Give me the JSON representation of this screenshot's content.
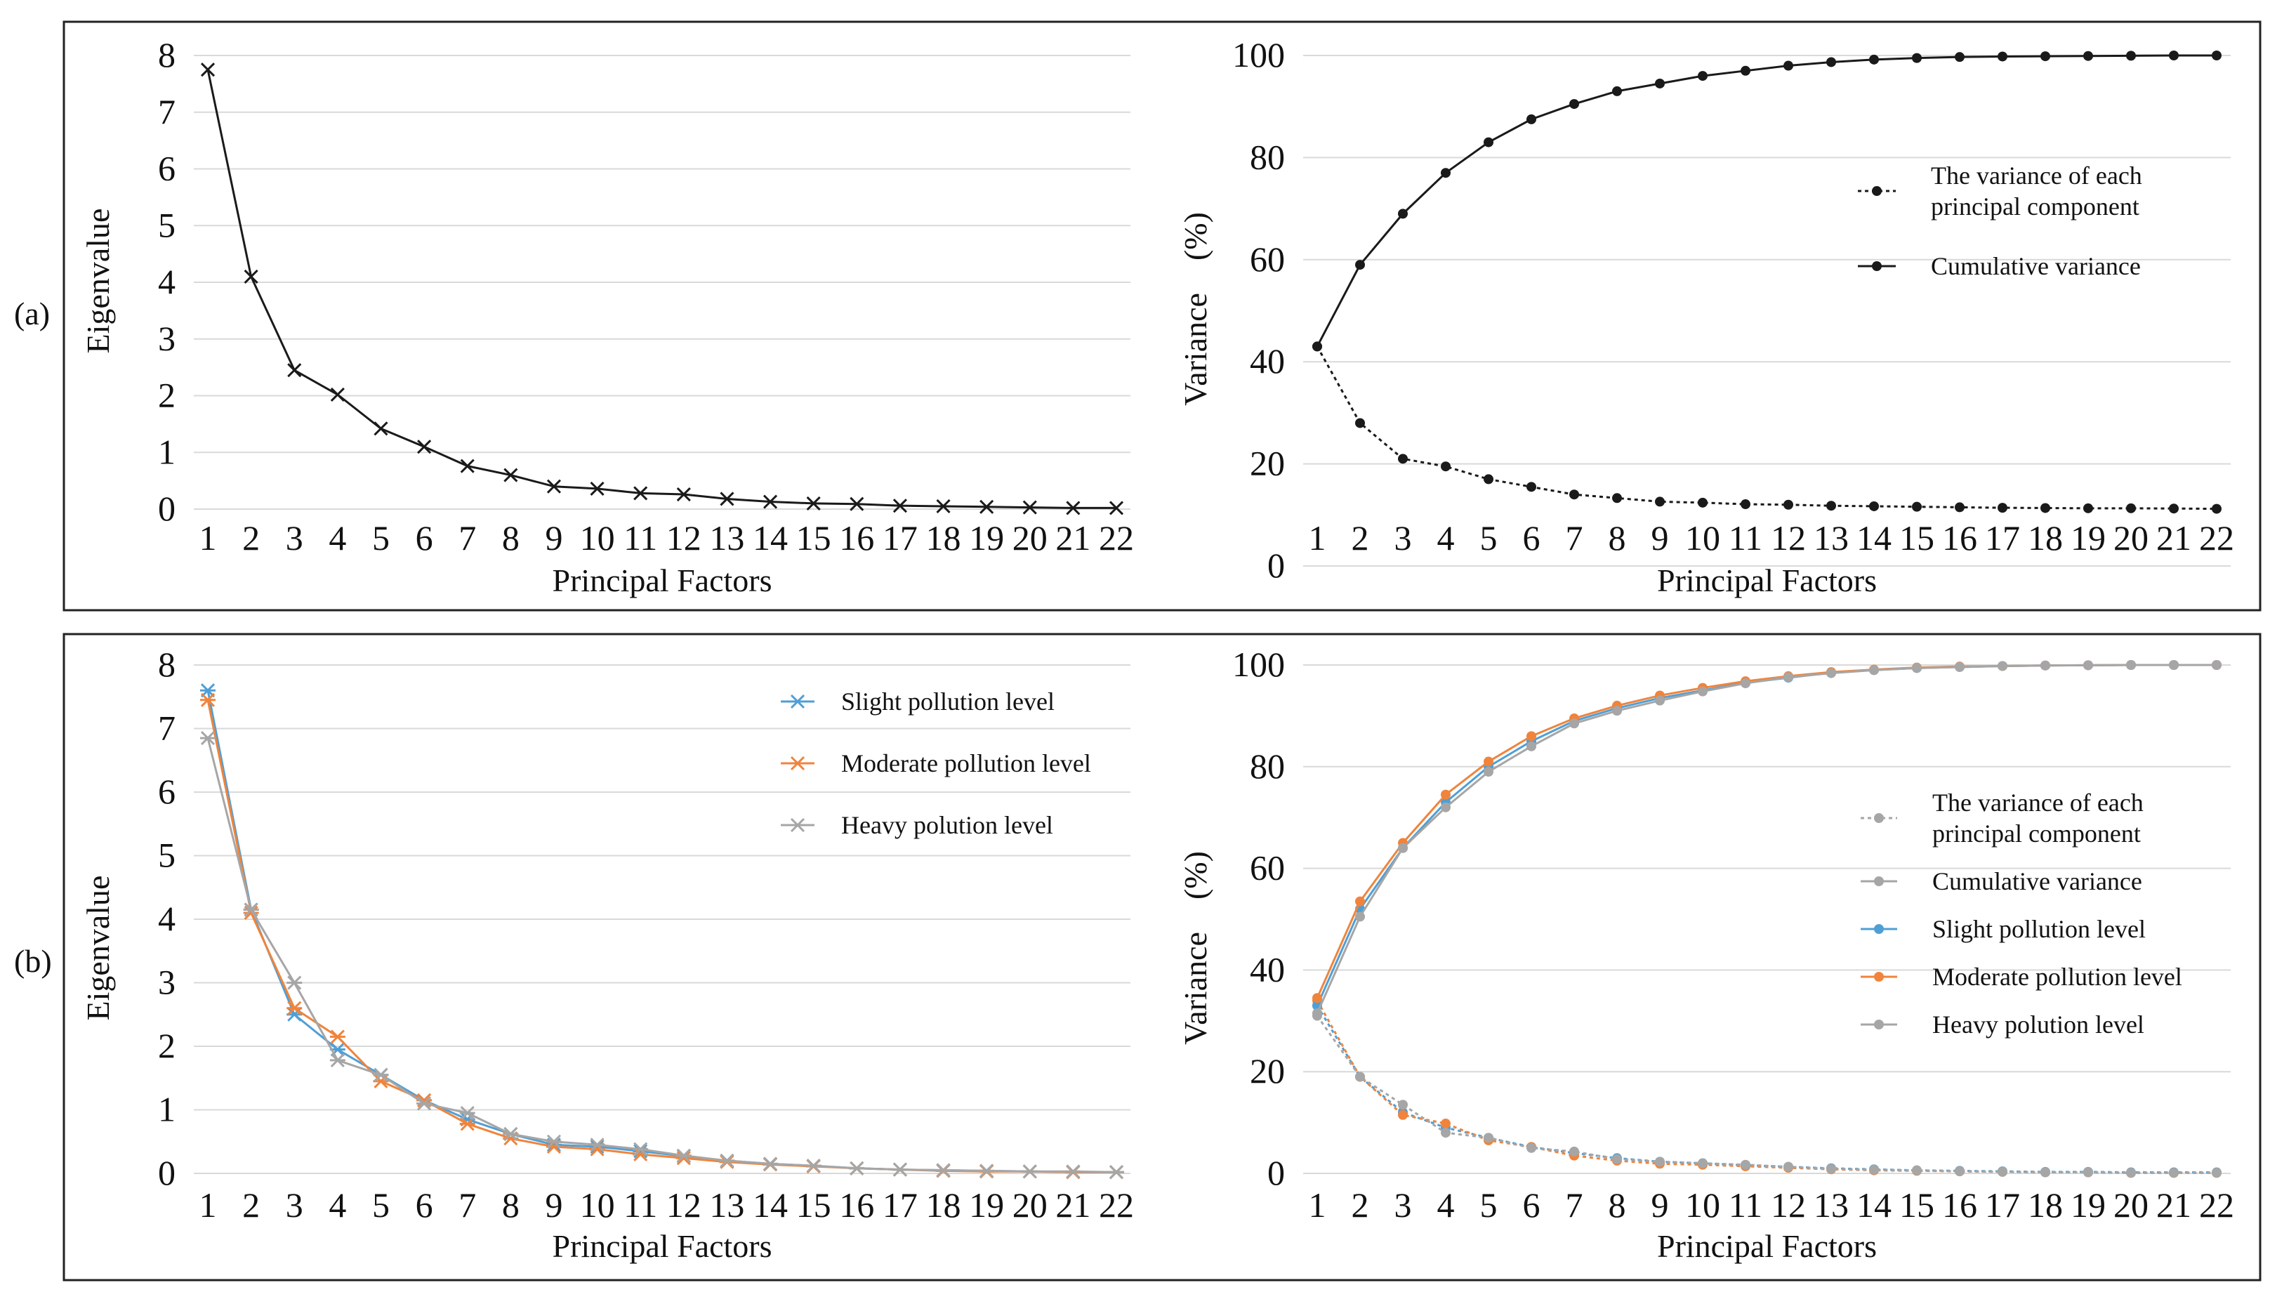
{
  "panels": [
    {
      "label": "(a)"
    },
    {
      "label": "(b)"
    }
  ],
  "colors": {
    "black": "#1a1a1a",
    "slight": "#4f9fd6",
    "moderate": "#f0843c",
    "heavy": "#a6a6a6",
    "grid": "#d9d9d9",
    "frame": "#222222"
  },
  "chart_data": [
    {
      "id": "a-eigen",
      "type": "line",
      "xlabel": "Principal Factors",
      "ylabel": "Eigenvalue",
      "ylim": [
        0,
        8
      ],
      "yticks": [
        "0",
        "1",
        "2",
        "3",
        "4",
        "5",
        "6",
        "7",
        "8"
      ],
      "categories": [
        "1",
        "2",
        "3",
        "4",
        "5",
        "6",
        "7",
        "8",
        "9",
        "10",
        "11",
        "12",
        "13",
        "14",
        "15",
        "16",
        "17",
        "18",
        "19",
        "20",
        "21",
        "22"
      ],
      "series": [
        {
          "name": "Eigenvalue",
          "color": "#1a1a1a",
          "dash": "",
          "marker": "x",
          "values": [
            7.75,
            4.1,
            2.45,
            2.02,
            1.42,
            1.1,
            0.76,
            0.6,
            0.4,
            0.36,
            0.28,
            0.26,
            0.18,
            0.13,
            0.1,
            0.09,
            0.06,
            0.05,
            0.04,
            0.03,
            0.02,
            0.02
          ]
        }
      ],
      "legend": []
    },
    {
      "id": "a-variance",
      "type": "line",
      "xlabel": "Principal Factors",
      "ylabel": "Variance　(%)",
      "ylim": [
        0,
        100
      ],
      "yticks": [
        "0",
        "20",
        "40",
        "60",
        "80",
        "100"
      ],
      "categories": [
        "1",
        "2",
        "3",
        "4",
        "5",
        "6",
        "7",
        "8",
        "9",
        "10",
        "11",
        "12",
        "13",
        "14",
        "15",
        "16",
        "17",
        "18",
        "19",
        "20",
        "21",
        "22"
      ],
      "series": [
        {
          "name": "The variance of each principal component",
          "color": "#1a1a1a",
          "dash": "5,5",
          "marker": "dot",
          "values": [
            43,
            28,
            21,
            19.5,
            17,
            15.5,
            14,
            13.3,
            12.6,
            12.4,
            12.1,
            12,
            11.8,
            11.7,
            11.6,
            11.5,
            11.4,
            11.35,
            11.3,
            11.3,
            11.25,
            11.2
          ]
        },
        {
          "name": "Cumulative variance",
          "color": "#1a1a1a",
          "dash": "",
          "marker": "dot",
          "values": [
            43,
            59,
            69,
            77,
            83,
            87.5,
            90.5,
            93,
            94.5,
            96,
            97,
            98,
            98.7,
            99.2,
            99.5,
            99.7,
            99.8,
            99.85,
            99.9,
            99.95,
            100,
            100
          ]
        }
      ],
      "legend": [
        {
          "lines": [
            "The variance of each",
            "principal component"
          ],
          "color": "#1a1a1a",
          "dash": "5,5",
          "marker": "dot"
        },
        {
          "lines": [
            "Cumulative variance"
          ],
          "color": "#1a1a1a",
          "dash": "",
          "marker": "dot"
        }
      ]
    },
    {
      "id": "b-eigen",
      "type": "line",
      "xlabel": "Principal Factors",
      "ylabel": "Eigenvalue",
      "ylim": [
        0,
        8
      ],
      "yticks": [
        "0",
        "1",
        "2",
        "3",
        "4",
        "5",
        "6",
        "7",
        "8"
      ],
      "categories": [
        "1",
        "2",
        "3",
        "4",
        "5",
        "6",
        "7",
        "8",
        "9",
        "10",
        "11",
        "12",
        "13",
        "14",
        "15",
        "16",
        "17",
        "18",
        "19",
        "20",
        "21",
        "22"
      ],
      "series": [
        {
          "name": "Slight pollution level",
          "color": "#4f9fd6",
          "dash": "",
          "marker": "star",
          "values": [
            7.6,
            4.15,
            2.5,
            1.95,
            1.55,
            1.15,
            0.85,
            0.62,
            0.45,
            0.42,
            0.35,
            0.27,
            0.2,
            0.15,
            0.12,
            0.08,
            0.06,
            0.05,
            0.04,
            0.03,
            0.02,
            0.02
          ]
        },
        {
          "name": "Moderate pollution level",
          "color": "#f0843c",
          "dash": "",
          "marker": "star",
          "values": [
            7.45,
            4.1,
            2.6,
            2.15,
            1.45,
            1.15,
            0.78,
            0.55,
            0.42,
            0.38,
            0.3,
            0.24,
            0.18,
            0.14,
            0.11,
            0.08,
            0.06,
            0.04,
            0.03,
            0.03,
            0.02,
            0.02
          ]
        },
        {
          "name": "Heavy polution level",
          "color": "#a6a6a6",
          "dash": "",
          "marker": "star",
          "values": [
            6.85,
            4.15,
            3.0,
            1.78,
            1.55,
            1.1,
            0.95,
            0.62,
            0.5,
            0.45,
            0.38,
            0.28,
            0.2,
            0.15,
            0.12,
            0.08,
            0.06,
            0.05,
            0.04,
            0.03,
            0.03,
            0.02
          ]
        }
      ],
      "legend": [
        {
          "lines": [
            "Slight pollution level"
          ],
          "color": "#4f9fd6",
          "dash": "",
          "marker": "star"
        },
        {
          "lines": [
            "Moderate pollution level"
          ],
          "color": "#f0843c",
          "dash": "",
          "marker": "star"
        },
        {
          "lines": [
            "Heavy polution level"
          ],
          "color": "#a6a6a6",
          "dash": "",
          "marker": "star"
        }
      ]
    },
    {
      "id": "b-variance",
      "type": "line",
      "xlabel": "Principal Factors",
      "ylabel": "Variance　(%)",
      "ylim": [
        0,
        100
      ],
      "yticks": [
        "0",
        "20",
        "40",
        "60",
        "80",
        "100"
      ],
      "categories": [
        "1",
        "2",
        "3",
        "4",
        "5",
        "6",
        "7",
        "8",
        "9",
        "10",
        "11",
        "12",
        "13",
        "14",
        "15",
        "16",
        "17",
        "18",
        "19",
        "20",
        "21",
        "22"
      ],
      "series": [
        {
          "name": "Slight pollution level (variance)",
          "color": "#4f9fd6",
          "dash": "5,5",
          "marker": "dot",
          "values": [
            33,
            19,
            12,
            9,
            7,
            5.2,
            4,
            3,
            2.3,
            2,
            1.6,
            1.3,
            1,
            0.8,
            0.6,
            0.5,
            0.4,
            0.3,
            0.3,
            0.2,
            0.2,
            0.2
          ]
        },
        {
          "name": "Moderate pollution level (variance)",
          "color": "#f0843c",
          "dash": "5,5",
          "marker": "dot",
          "values": [
            34,
            19,
            11.5,
            9.8,
            6.5,
            5.2,
            3.5,
            2.5,
            1.9,
            1.7,
            1.4,
            1.1,
            0.8,
            0.6,
            0.5,
            0.4,
            0.3,
            0.2,
            0.2,
            0.1,
            0.1,
            0.1
          ]
        },
        {
          "name": "Heavy polution level (variance)",
          "color": "#a6a6a6",
          "dash": "5,5",
          "marker": "dot",
          "values": [
            31,
            19,
            13.5,
            8,
            7,
            5,
            4.3,
            2.8,
            2.3,
            2,
            1.7,
            1.3,
            0.9,
            0.7,
            0.6,
            0.4,
            0.3,
            0.2,
            0.2,
            0.1,
            0.1,
            0.1
          ]
        },
        {
          "name": "Slight pollution level (cumulative)",
          "color": "#4f9fd6",
          "dash": "",
          "marker": "dot",
          "values": [
            33,
            52,
            64,
            73,
            80,
            85,
            89,
            91.5,
            93.5,
            95,
            96.5,
            97.5,
            98.5,
            99,
            99.4,
            99.6,
            99.8,
            99.9,
            99.95,
            100,
            100,
            100
          ]
        },
        {
          "name": "Moderate pollution level (cumulative)",
          "color": "#f0843c",
          "dash": "",
          "marker": "dot",
          "values": [
            34.5,
            53.5,
            65,
            74.5,
            81,
            86,
            89.5,
            92,
            94,
            95.5,
            96.8,
            97.8,
            98.6,
            99.1,
            99.5,
            99.7,
            99.8,
            99.9,
            99.95,
            100,
            100,
            100
          ]
        },
        {
          "name": "Heavy polution level (cumulative)",
          "color": "#a6a6a6",
          "dash": "",
          "marker": "dot",
          "values": [
            31.5,
            50.5,
            64,
            72,
            79,
            84,
            88.5,
            91,
            93,
            94.8,
            96.4,
            97.6,
            98.4,
            99,
            99.4,
            99.6,
            99.8,
            99.9,
            99.95,
            100,
            100,
            100
          ]
        }
      ],
      "legend": [
        {
          "lines": [
            "The variance of each",
            "principal component"
          ],
          "color": "#a6a6a6",
          "dash": "5,5",
          "marker": "dot"
        },
        {
          "lines": [
            "Cumulative variance"
          ],
          "color": "#a6a6a6",
          "dash": "",
          "marker": "dot"
        },
        {
          "lines": [
            "Slight pollution level"
          ],
          "color": "#4f9fd6",
          "dash": "",
          "marker": "dot"
        },
        {
          "lines": [
            "Moderate pollution level"
          ],
          "color": "#f0843c",
          "dash": "",
          "marker": "dot"
        },
        {
          "lines": [
            "Heavy polution level"
          ],
          "color": "#a6a6a6",
          "dash": "",
          "marker": "dot"
        }
      ]
    }
  ]
}
